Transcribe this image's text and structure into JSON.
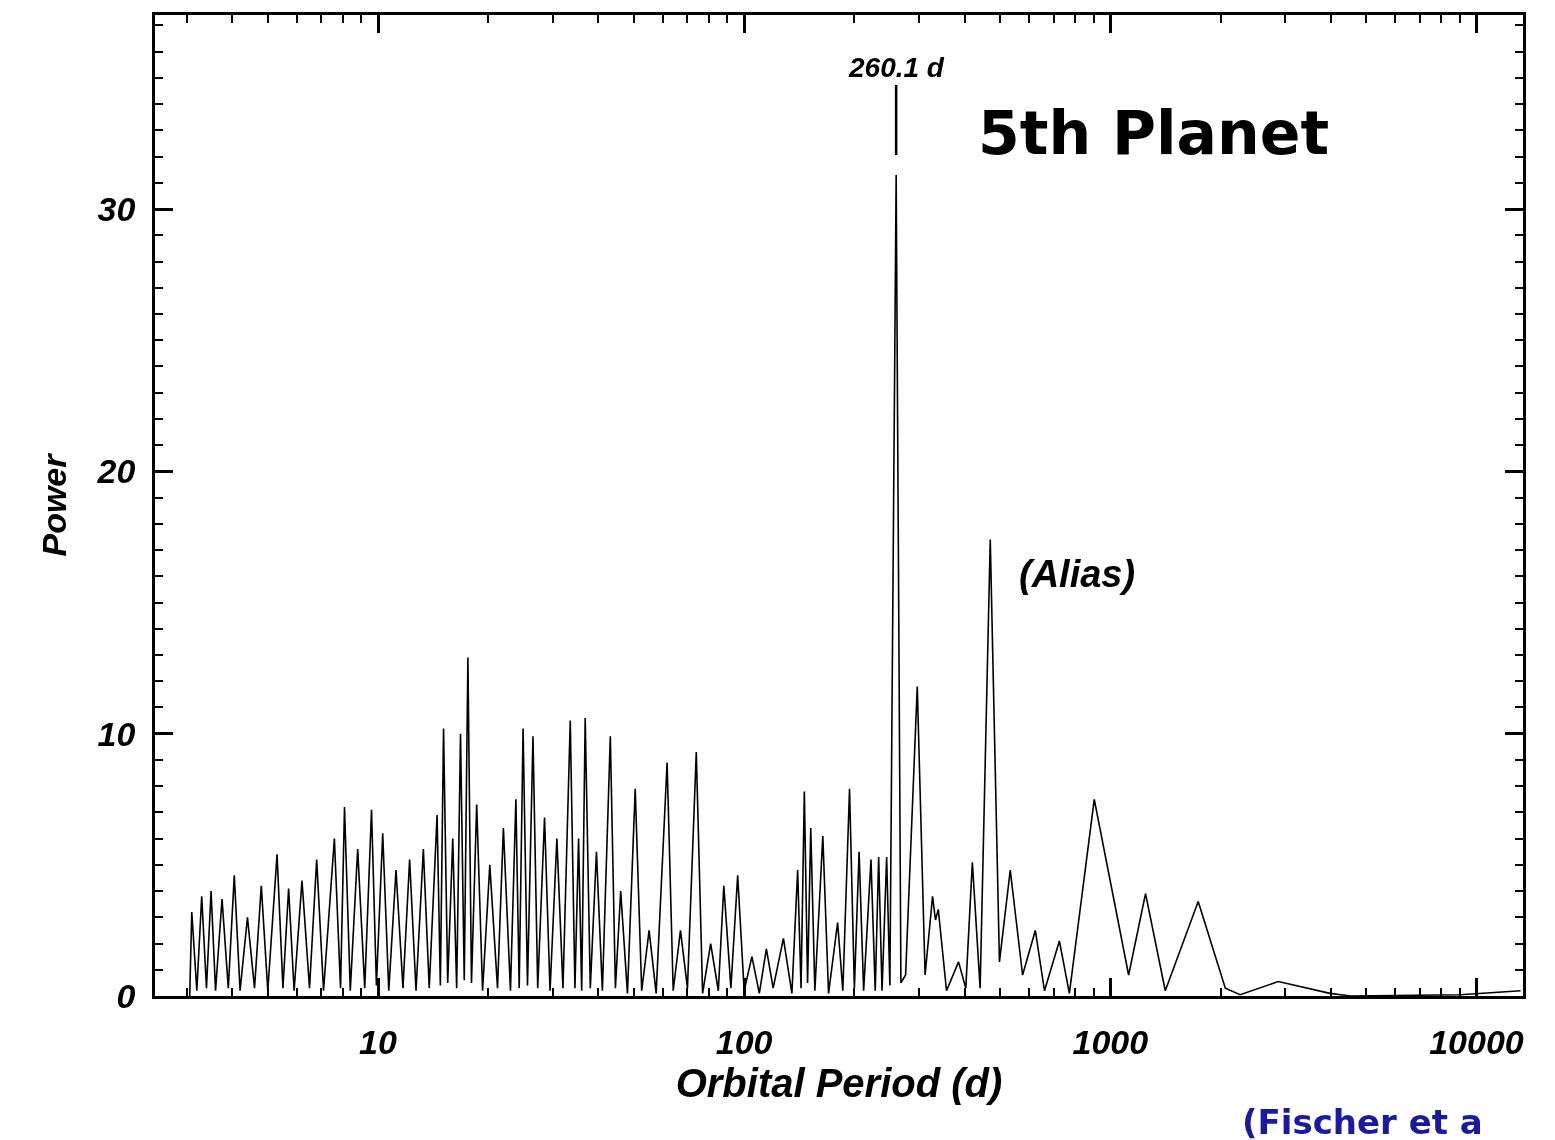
{
  "chart_data": {
    "type": "line",
    "xlabel": "Orbital Period (d)",
    "ylabel": "Power",
    "log": "x",
    "marker": "none",
    "line_style": "solid",
    "xlim": [
      2.46,
      13400
    ],
    "xticks": [
      10,
      100,
      1000,
      10000
    ],
    "ylim": [
      0,
      37.4
    ],
    "yticks": [
      0,
      10,
      20,
      30
    ],
    "annotations": [
      {
        "text": "260.1 d",
        "x": 260.1,
        "y": 31.3
      },
      "5th Planet",
      "(Alias)",
      "(Fischer et a"
    ],
    "series": [
      {
        "color": "#000000",
        "x": [
          3.06,
          3.1,
          3.2,
          3.3,
          3.4,
          3.5,
          3.6,
          3.75,
          3.9,
          4.05,
          4.2,
          4.4,
          4.6,
          4.8,
          5.0,
          5.3,
          5.5,
          5.7,
          5.9,
          6.2,
          6.5,
          6.8,
          7.1,
          7.6,
          7.9,
          8.1,
          8.4,
          8.8,
          9.2,
          9.6,
          9.9,
          10.3,
          10.7,
          11.2,
          11.7,
          12.2,
          12.7,
          13.3,
          13.8,
          14.5,
          14.8,
          15.1,
          15.5,
          16.0,
          16.4,
          16.8,
          17.2,
          17.6,
          18.0,
          18.6,
          19.3,
          20.2,
          21.2,
          22.0,
          23.0,
          23.8,
          24.3,
          24.9,
          25.6,
          26.5,
          27.3,
          28.5,
          29.5,
          30.8,
          32.0,
          33.5,
          34.5,
          35.3,
          36.0,
          36.8,
          38.0,
          39.5,
          41.0,
          43.1,
          44.5,
          46.0,
          48.0,
          50.4,
          52.5,
          55.0,
          57.5,
          61.6,
          64.0,
          67.0,
          70.0,
          74.0,
          77.0,
          81.0,
          85.0,
          88.0,
          92.0,
          96.0,
          100,
          105,
          110,
          115,
          120,
          128,
          135,
          140,
          143,
          146,
          149,
          152,
          156,
          164,
          170,
          180,
          186,
          194,
          200,
          206,
          212,
          222,
          228,
          233,
          238,
          245,
          250,
          260.1,
          268,
          276,
          297,
          312,
          327,
          333,
          339,
          357,
          385,
          403,
          420,
          441,
          470,
          498,
          533,
          576,
          624,
          661,
          726,
          773,
          904,
          1122,
          1248,
          1413,
          1738,
          2061,
          2263,
          2877,
          3981,
          4529,
          9036,
          13200
        ],
        "values": [
          0,
          3.2,
          0.2,
          3.8,
          0.3,
          4.0,
          0.2,
          3.7,
          0.3,
          4.6,
          0.2,
          3.0,
          0.3,
          4.2,
          0.2,
          5.4,
          0.3,
          4.1,
          0.2,
          4.4,
          0.3,
          5.2,
          0.2,
          6.0,
          0.3,
          7.2,
          0.2,
          5.6,
          0.3,
          7.1,
          0.4,
          6.2,
          0.2,
          4.8,
          0.3,
          5.2,
          0.2,
          5.6,
          0.3,
          6.9,
          0.4,
          10.2,
          0.5,
          6.0,
          0.3,
          10.0,
          0.6,
          12.9,
          0.5,
          7.3,
          0.2,
          5.0,
          0.3,
          6.4,
          0.2,
          7.5,
          0.3,
          10.2,
          0.4,
          9.9,
          0.3,
          6.8,
          0.2,
          6.0,
          0.3,
          10.5,
          0.3,
          6.0,
          0.2,
          10.6,
          0.3,
          5.5,
          0.2,
          9.9,
          0.3,
          4.0,
          0.1,
          7.9,
          0.2,
          2.5,
          0.1,
          8.9,
          0.2,
          2.5,
          0.3,
          9.3,
          0.1,
          2.0,
          0.2,
          4.2,
          0.3,
          4.6,
          0.2,
          1.5,
          0.1,
          1.8,
          0.3,
          2.2,
          0.1,
          4.8,
          0.3,
          7.8,
          0.5,
          6.4,
          0.2,
          6.1,
          0.1,
          2.8,
          0.2,
          7.9,
          0.3,
          5.5,
          0.2,
          5.2,
          0.2,
          5.3,
          0.2,
          5.3,
          0.4,
          31.3,
          0.5,
          0.8,
          11.8,
          0.8,
          3.8,
          2.9,
          3.3,
          0.2,
          1.3,
          0.3,
          5.1,
          0.3,
          17.4,
          1.3,
          4.8,
          0.8,
          2.5,
          0.2,
          2.1,
          0.1,
          7.5,
          0.8,
          3.9,
          0.2,
          3.6,
          0.3,
          0.05,
          0.55,
          0.1,
          0,
          0.05,
          0.2
        ]
      }
    ]
  }
}
